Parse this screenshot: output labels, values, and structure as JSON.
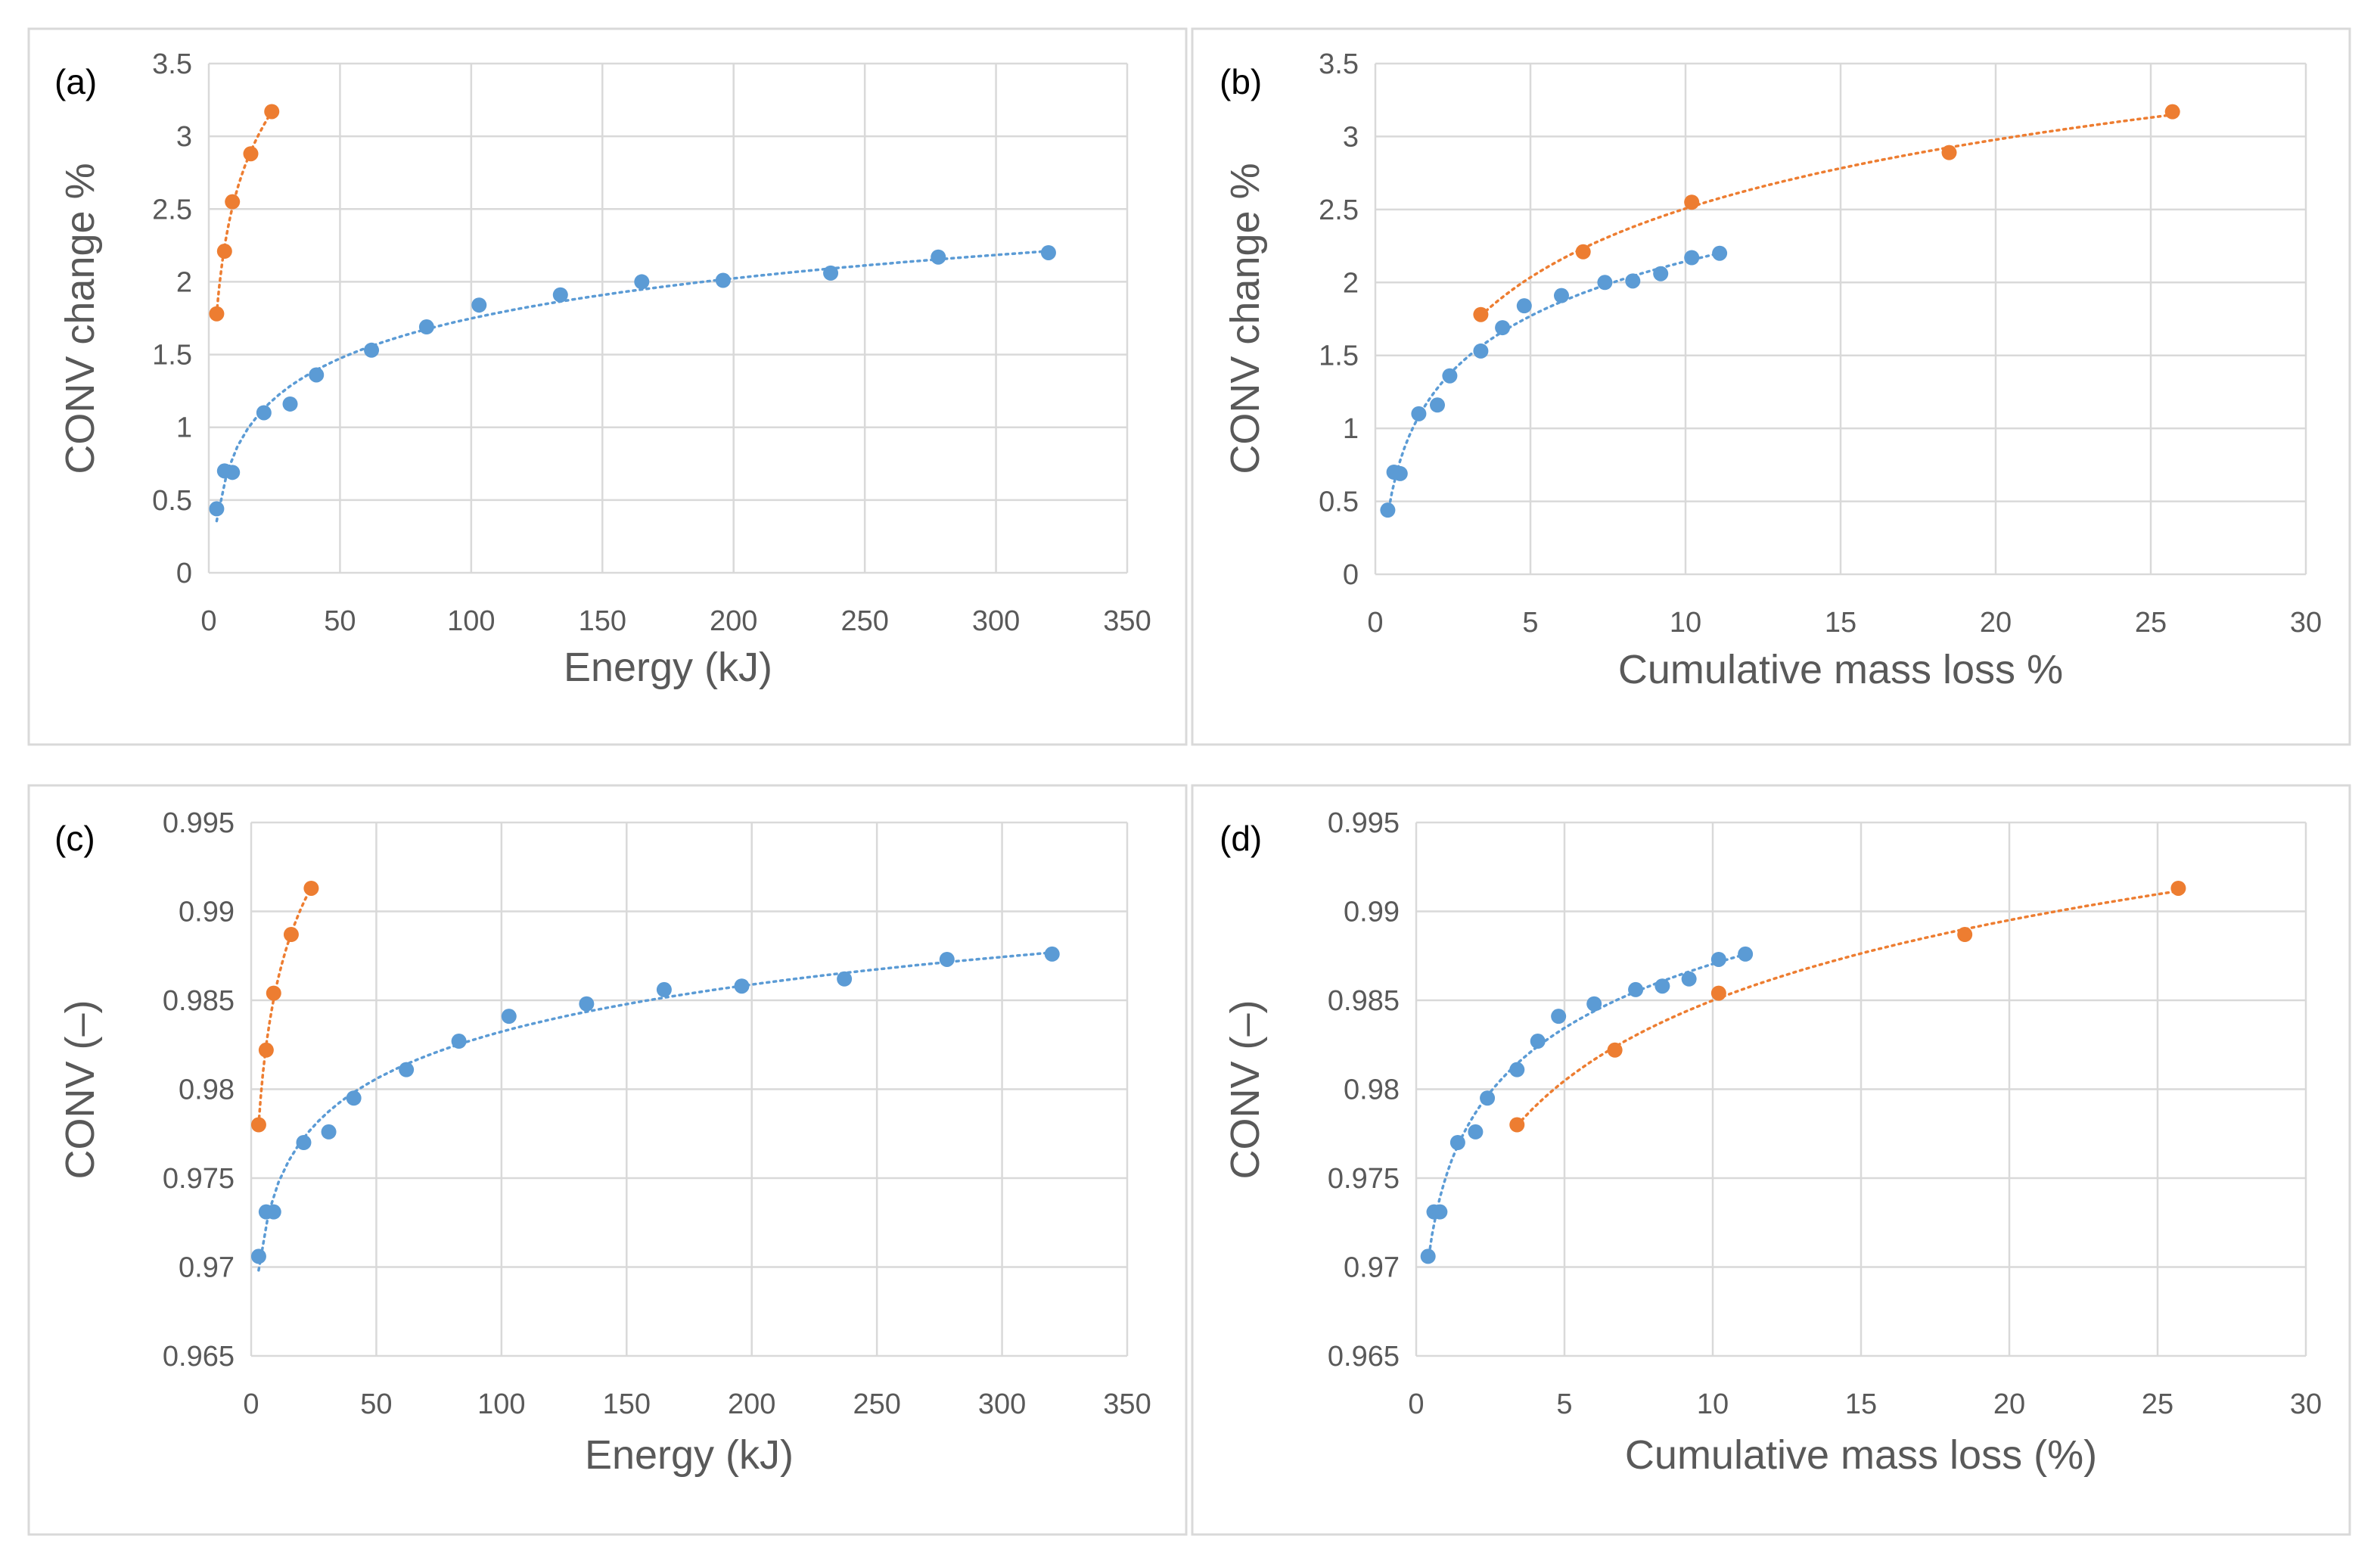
{
  "colors": {
    "blue": "#5b9bd5",
    "orange": "#ed7d31"
  },
  "chart_data": [
    {
      "type": "scatter",
      "panel_label": "(a)",
      "xlabel": "Energy (kJ)",
      "ylabel": "CONV change %",
      "xlim": [
        0,
        350
      ],
      "ylim": [
        0,
        3.5
      ],
      "x_ticks": [
        "0",
        "50",
        "100",
        "150",
        "200",
        "250",
        "300",
        "350"
      ],
      "y_ticks": [
        "0",
        "0.5",
        "1",
        "1.5",
        "2",
        "2.5",
        "3",
        "3.5"
      ],
      "trendline": "logarithmic, dotted",
      "series": [
        {
          "name": "blue",
          "x": [
            3,
            6,
            9,
            21,
            31,
            41,
            62,
            83,
            103,
            134,
            165,
            196,
            237,
            278,
            320
          ],
          "y": [
            0.44,
            0.7,
            0.69,
            1.1,
            1.16,
            1.36,
            1.53,
            1.69,
            1.84,
            1.91,
            2.0,
            2.01,
            2.06,
            2.17,
            2.2
          ]
        },
        {
          "name": "orange",
          "x": [
            3,
            6,
            9,
            16,
            24
          ],
          "y": [
            1.78,
            2.21,
            2.55,
            2.88,
            3.17
          ]
        }
      ]
    },
    {
      "type": "scatter",
      "panel_label": "(b)",
      "xlabel": "Cumulative mass loss %",
      "ylabel": "CONV change %",
      "xlim": [
        0,
        30
      ],
      "ylim": [
        0,
        3.5
      ],
      "x_ticks": [
        "0",
        "5",
        "10",
        "15",
        "20",
        "25",
        "30"
      ],
      "y_ticks": [
        "0",
        "0.5",
        "1",
        "1.5",
        "2",
        "2.5",
        "3",
        "3.5"
      ],
      "trendline": "logarithmic, dotted",
      "series": [
        {
          "name": "blue",
          "x": [
            0.4,
            0.6,
            0.8,
            1.4,
            2.0,
            2.4,
            3.4,
            4.1,
            4.8,
            6.0,
            7.4,
            8.3,
            9.2,
            10.2,
            11.1
          ],
          "y": [
            0.44,
            0.7,
            0.69,
            1.1,
            1.16,
            1.36,
            1.53,
            1.69,
            1.84,
            1.91,
            2.0,
            2.01,
            2.06,
            2.17,
            2.2
          ]
        },
        {
          "name": "orange",
          "x": [
            3.4,
            6.7,
            10.2,
            18.5,
            25.7
          ],
          "y": [
            1.78,
            2.21,
            2.55,
            2.89,
            3.17
          ]
        }
      ]
    },
    {
      "type": "scatter",
      "panel_label": "(c)",
      "xlabel": "Energy (kJ)",
      "ylabel": "CONV (–)",
      "xlim": [
        0,
        350
      ],
      "ylim": [
        0.965,
        0.995
      ],
      "x_ticks": [
        "0",
        "50",
        "100",
        "150",
        "200",
        "250",
        "300",
        "350"
      ],
      "y_ticks": [
        "0.965",
        "0.97",
        "0.975",
        "0.98",
        "0.985",
        "0.99",
        "0.995"
      ],
      "trendline": "logarithmic, dotted",
      "series": [
        {
          "name": "blue",
          "x": [
            3,
            6,
            9,
            21,
            31,
            41,
            62,
            83,
            103,
            134,
            165,
            196,
            237,
            278,
            320
          ],
          "y": [
            0.9706,
            0.9731,
            0.9731,
            0.977,
            0.9776,
            0.9795,
            0.9811,
            0.9827,
            0.9841,
            0.9848,
            0.9856,
            0.9858,
            0.9862,
            0.9873,
            0.9876
          ]
        },
        {
          "name": "orange",
          "x": [
            3,
            6,
            9,
            16,
            24
          ],
          "y": [
            0.978,
            0.9822,
            0.9854,
            0.9887,
            0.9913
          ]
        }
      ]
    },
    {
      "type": "scatter",
      "panel_label": "(d)",
      "xlabel": "Cumulative mass loss (%)",
      "ylabel": "CONV (–)",
      "xlim": [
        0,
        30
      ],
      "ylim": [
        0.965,
        0.995
      ],
      "x_ticks": [
        "0",
        "5",
        "10",
        "15",
        "20",
        "25",
        "30"
      ],
      "y_ticks": [
        "0.965",
        "0.97",
        "0.975",
        "0.98",
        "0.985",
        "0.99",
        "0.995"
      ],
      "trendline": "logarithmic, dotted",
      "series": [
        {
          "name": "blue",
          "x": [
            0.4,
            0.6,
            0.8,
            1.4,
            2.0,
            2.4,
            3.4,
            4.1,
            4.8,
            6.0,
            7.4,
            8.3,
            9.2,
            10.2,
            11.1
          ],
          "y": [
            0.9706,
            0.9731,
            0.9731,
            0.977,
            0.9776,
            0.9795,
            0.9811,
            0.9827,
            0.9841,
            0.9848,
            0.9856,
            0.9858,
            0.9862,
            0.9873,
            0.9876
          ]
        },
        {
          "name": "orange",
          "x": [
            3.4,
            6.7,
            10.2,
            18.5,
            25.7
          ],
          "y": [
            0.978,
            0.9822,
            0.9854,
            0.9887,
            0.9913
          ]
        }
      ]
    }
  ]
}
